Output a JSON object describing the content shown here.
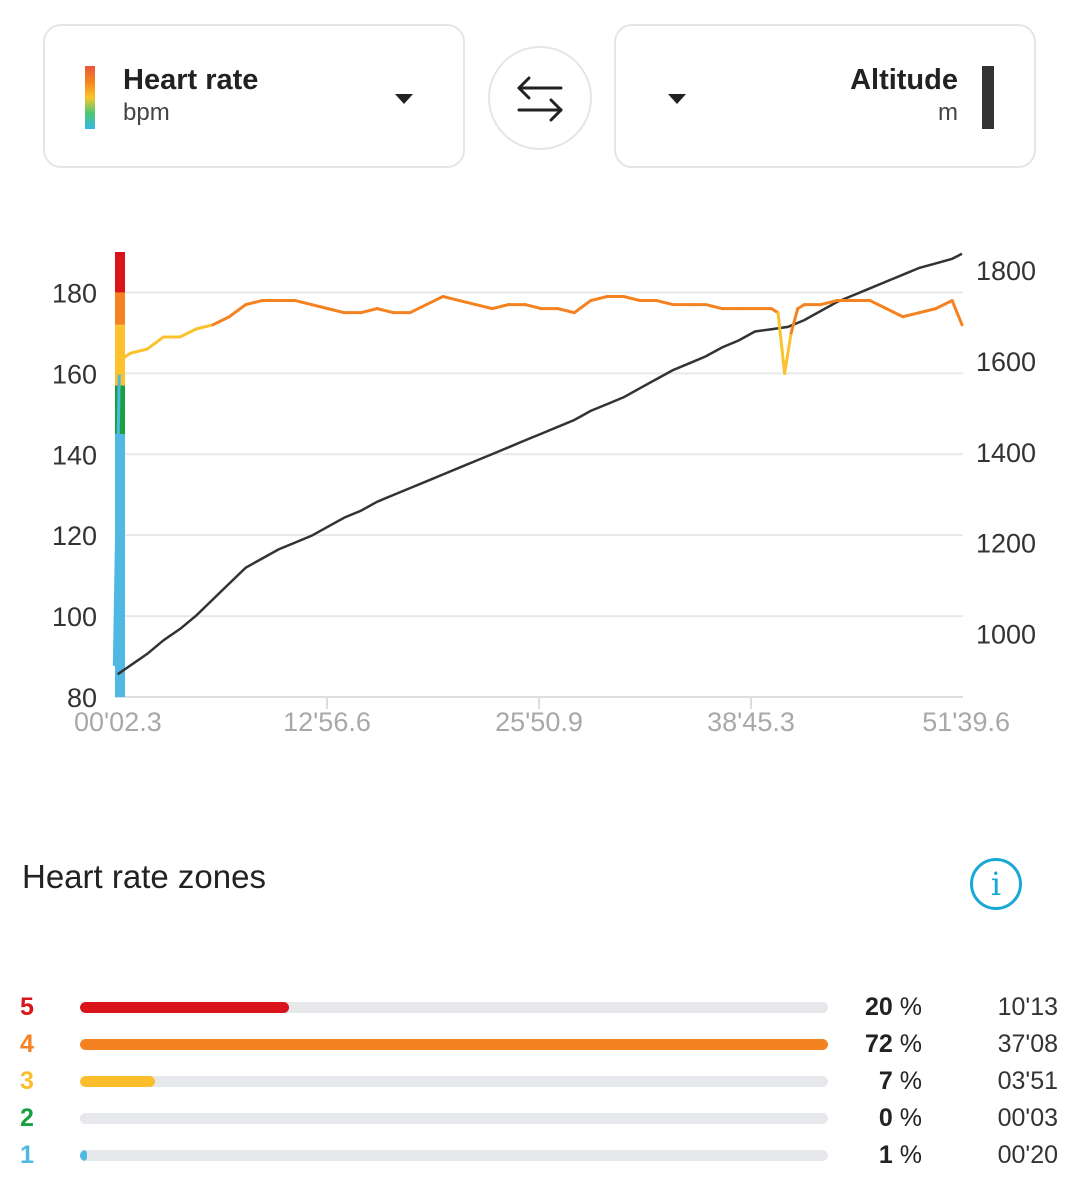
{
  "header": {
    "left": {
      "title": "Heart rate",
      "unit": "bpm"
    },
    "right": {
      "title": "Altitude",
      "unit": "m"
    },
    "swap_icon": "swap-arrows-icon"
  },
  "chart_data": {
    "type": "line",
    "x_ticks": [
      "00'02.3",
      "12'56.6",
      "25'50.9",
      "38'45.3",
      "51'39.6"
    ],
    "x_range_minutes": [
      0.04,
      51.66
    ],
    "y_left": {
      "ticks": [
        80,
        100,
        120,
        140,
        160,
        180
      ],
      "range": [
        80,
        190
      ]
    },
    "y_right": {
      "ticks": [
        1000,
        1200,
        1400,
        1600,
        1800
      ],
      "range": [
        860,
        1840
      ]
    },
    "zone_band": [
      {
        "zone": 5,
        "from": 180,
        "to": 190,
        "color": "#d9141a"
      },
      {
        "zone": 4,
        "from": 172,
        "to": 180,
        "color": "#f58220"
      },
      {
        "zone": 3,
        "from": 157,
        "to": 172,
        "color": "#fcc22d"
      },
      {
        "zone": 2,
        "from": 145,
        "to": 157,
        "color": "#1aa043"
      },
      {
        "zone": 1,
        "from": 80,
        "to": 145,
        "color": "#4fb9e3"
      }
    ],
    "series": [
      {
        "axis": "left",
        "color_by_zone": true,
        "points": [
          [
            0.0,
            88
          ],
          [
            0.3,
            160
          ],
          [
            0.6,
            164
          ],
          [
            1.0,
            165
          ],
          [
            2.0,
            166
          ],
          [
            3.0,
            169
          ],
          [
            4.0,
            169
          ],
          [
            5.0,
            171
          ],
          [
            6.0,
            172
          ],
          [
            7.0,
            174
          ],
          [
            8.0,
            177
          ],
          [
            9.0,
            178
          ],
          [
            10.0,
            178
          ],
          [
            11.0,
            178
          ],
          [
            12.0,
            177
          ],
          [
            13.0,
            176
          ],
          [
            14.0,
            175
          ],
          [
            15.0,
            175
          ],
          [
            16.0,
            176
          ],
          [
            17.0,
            175
          ],
          [
            18.0,
            175
          ],
          [
            19.0,
            177
          ],
          [
            20.0,
            179
          ],
          [
            21.0,
            178
          ],
          [
            22.0,
            177
          ],
          [
            23.0,
            176
          ],
          [
            24.0,
            177
          ],
          [
            25.0,
            177
          ],
          [
            26.0,
            176
          ],
          [
            27.0,
            176
          ],
          [
            28.0,
            175
          ],
          [
            29.0,
            178
          ],
          [
            30.0,
            179
          ],
          [
            31.0,
            179
          ],
          [
            32.0,
            178
          ],
          [
            33.0,
            178
          ],
          [
            34.0,
            177
          ],
          [
            35.0,
            177
          ],
          [
            36.0,
            177
          ],
          [
            37.0,
            176
          ],
          [
            38.0,
            176
          ],
          [
            39.0,
            176
          ],
          [
            40.0,
            176
          ],
          [
            40.4,
            175
          ],
          [
            40.8,
            160
          ],
          [
            41.2,
            170
          ],
          [
            41.6,
            176
          ],
          [
            42.0,
            177
          ],
          [
            43.0,
            177
          ],
          [
            44.0,
            178
          ],
          [
            45.0,
            178
          ],
          [
            46.0,
            178
          ],
          [
            47.0,
            176
          ],
          [
            48.0,
            174
          ],
          [
            49.0,
            175
          ],
          [
            50.0,
            176
          ],
          [
            51.0,
            178
          ],
          [
            51.6,
            172
          ]
        ]
      },
      {
        "axis": "right",
        "color": "#333333",
        "points": [
          [
            0.2,
            910
          ],
          [
            1,
            930
          ],
          [
            2,
            955
          ],
          [
            3,
            985
          ],
          [
            4,
            1010
          ],
          [
            5,
            1040
          ],
          [
            6,
            1075
          ],
          [
            7,
            1110
          ],
          [
            8,
            1145
          ],
          [
            9,
            1165
          ],
          [
            10,
            1185
          ],
          [
            11,
            1200
          ],
          [
            12,
            1215
          ],
          [
            13,
            1235
          ],
          [
            14,
            1255
          ],
          [
            15,
            1270
          ],
          [
            16,
            1290
          ],
          [
            17,
            1305
          ],
          [
            18,
            1320
          ],
          [
            19,
            1335
          ],
          [
            20,
            1350
          ],
          [
            21,
            1365
          ],
          [
            22,
            1380
          ],
          [
            23,
            1395
          ],
          [
            24,
            1410
          ],
          [
            25,
            1425
          ],
          [
            26,
            1440
          ],
          [
            27,
            1455
          ],
          [
            28,
            1470
          ],
          [
            29,
            1490
          ],
          [
            30,
            1505
          ],
          [
            31,
            1520
          ],
          [
            32,
            1540
          ],
          [
            33,
            1560
          ],
          [
            34,
            1580
          ],
          [
            35,
            1595
          ],
          [
            36,
            1610
          ],
          [
            37,
            1630
          ],
          [
            38,
            1645
          ],
          [
            39,
            1665
          ],
          [
            40,
            1670
          ],
          [
            41,
            1675
          ],
          [
            42,
            1690
          ],
          [
            43,
            1710
          ],
          [
            44,
            1730
          ],
          [
            45,
            1745
          ],
          [
            46,
            1760
          ],
          [
            47,
            1775
          ],
          [
            48,
            1790
          ],
          [
            49,
            1805
          ],
          [
            50,
            1815
          ],
          [
            51,
            1825
          ],
          [
            51.6,
            1836
          ]
        ]
      }
    ]
  },
  "zones": {
    "title": "Heart rate zones",
    "info_icon": "info-icon",
    "rows": [
      {
        "zone": "5",
        "pct": "20",
        "pct_unit": "%",
        "time": "10'13",
        "fraction": 0.28,
        "color": "#d9141a"
      },
      {
        "zone": "4",
        "pct": "72",
        "pct_unit": "%",
        "time": "37'08",
        "fraction": 1.0,
        "color": "#f58220"
      },
      {
        "zone": "3",
        "pct": "7",
        "pct_unit": "%",
        "time": "03'51",
        "fraction": 0.1,
        "color": "#fcbd2d"
      },
      {
        "zone": "2",
        "pct": "0",
        "pct_unit": "%",
        "time": "00'03",
        "fraction": 0.0,
        "color": "#1aa043"
      },
      {
        "zone": "1",
        "pct": "1",
        "pct_unit": "%",
        "time": "00'20",
        "fraction": 0.01,
        "color": "#4fb9e3"
      }
    ]
  }
}
